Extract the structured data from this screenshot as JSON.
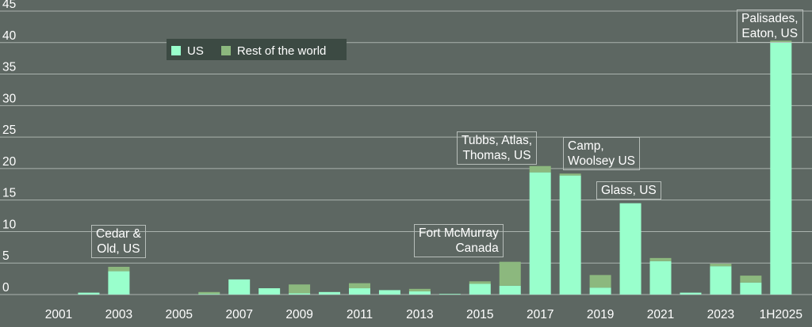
{
  "chart_data": {
    "type": "bar",
    "stacked": true,
    "categories": [
      "2001",
      "2002",
      "2003",
      "2004",
      "2005",
      "2006",
      "2007",
      "2008",
      "2009",
      "2010",
      "2011",
      "2012",
      "2013",
      "2014",
      "2015",
      "2016",
      "2017",
      "2018",
      "2019",
      "2020",
      "2021",
      "2022",
      "2023",
      "2024",
      "1H2025"
    ],
    "x_tick_labels": [
      "2001",
      "2003",
      "2005",
      "2007",
      "2009",
      "2011",
      "2013",
      "2015",
      "2017",
      "2019",
      "2021",
      "2023",
      "1H2025"
    ],
    "series": [
      {
        "name": "US",
        "color": "#99ffcc",
        "values": [
          0,
          0.3,
          3.7,
          0,
          0,
          0.1,
          2.4,
          1.0,
          0.2,
          0.4,
          1.0,
          0.7,
          0.5,
          0.1,
          1.7,
          1.4,
          19.4,
          18.9,
          1.1,
          14.5,
          5.3,
          0.3,
          4.5,
          1.9,
          40.0
        ]
      },
      {
        "name": "Rest of the world",
        "color": "#8cb87e",
        "values": [
          0,
          0,
          0.7,
          0,
          0,
          0.3,
          0,
          0,
          1.4,
          0,
          0.8,
          0,
          0.4,
          0,
          0.4,
          3.8,
          1.0,
          0.3,
          2.0,
          0,
          0.5,
          0,
          0.4,
          1.1,
          0.3
        ]
      }
    ],
    "y_ticks": [
      0,
      5,
      10,
      15,
      20,
      25,
      30,
      35,
      40,
      45
    ],
    "ylim": [
      0,
      45
    ],
    "grid": true,
    "legend_position": "top-left",
    "annotations": [
      {
        "id": "cedar",
        "lines": [
          "Cedar &",
          "Old, US"
        ],
        "align": "center"
      },
      {
        "id": "fortmcmurray",
        "lines": [
          "Fort McMurray",
          "Canada"
        ],
        "align": "right"
      },
      {
        "id": "tubbs",
        "lines": [
          "Tubbs, Atlas,",
          "Thomas, US"
        ],
        "align": "center"
      },
      {
        "id": "camp",
        "lines": [
          "Camp,",
          "Woolsey US"
        ],
        "align": "left"
      },
      {
        "id": "glass",
        "lines": [
          "Glass, US"
        ],
        "align": "left"
      },
      {
        "id": "palisades",
        "lines": [
          "Palisades,",
          "Eaton, US"
        ],
        "align": "center"
      }
    ]
  }
}
